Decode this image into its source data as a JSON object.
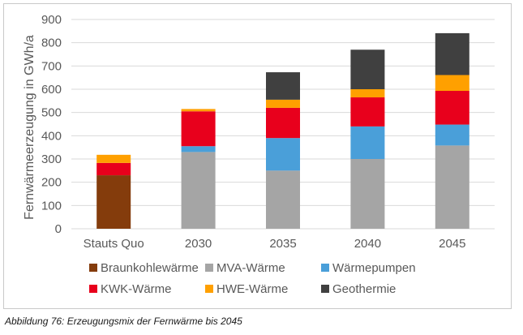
{
  "caption": "Abbildung 76: Erzeugungsmix der Fernwärme bis 2045",
  "chart_data": {
    "type": "bar",
    "stacked": true,
    "categories": [
      "Stauts Quo",
      "2030",
      "2035",
      "2040",
      "2045"
    ],
    "ylabel": "Fernwärmeerzeugung in GWh/a",
    "xlabel": "",
    "ylim": [
      0,
      900
    ],
    "yticks": [
      0,
      100,
      200,
      300,
      400,
      500,
      600,
      700,
      800,
      900
    ],
    "grid": true,
    "legend_position": "bottom",
    "series": [
      {
        "name": "Braunkohlewärme",
        "color": "#843c0c",
        "values": [
          230,
          0,
          0,
          0,
          0
        ]
      },
      {
        "name": "MVA-Wärme",
        "color": "#a5a5a5",
        "values": [
          0,
          330,
          250,
          300,
          358
        ]
      },
      {
        "name": "Wärmepumpen",
        "color": "#4a9fd9",
        "values": [
          0,
          25,
          140,
          140,
          90
        ]
      },
      {
        "name": "KWK-Wärme",
        "color": "#e8001c",
        "values": [
          53,
          150,
          130,
          125,
          145
        ]
      },
      {
        "name": "HWE-Wärme",
        "color": "#ffa000",
        "values": [
          35,
          10,
          35,
          35,
          68
        ]
      },
      {
        "name": "Geothermie",
        "color": "#404040",
        "values": [
          0,
          0,
          118,
          170,
          180
        ]
      }
    ]
  }
}
